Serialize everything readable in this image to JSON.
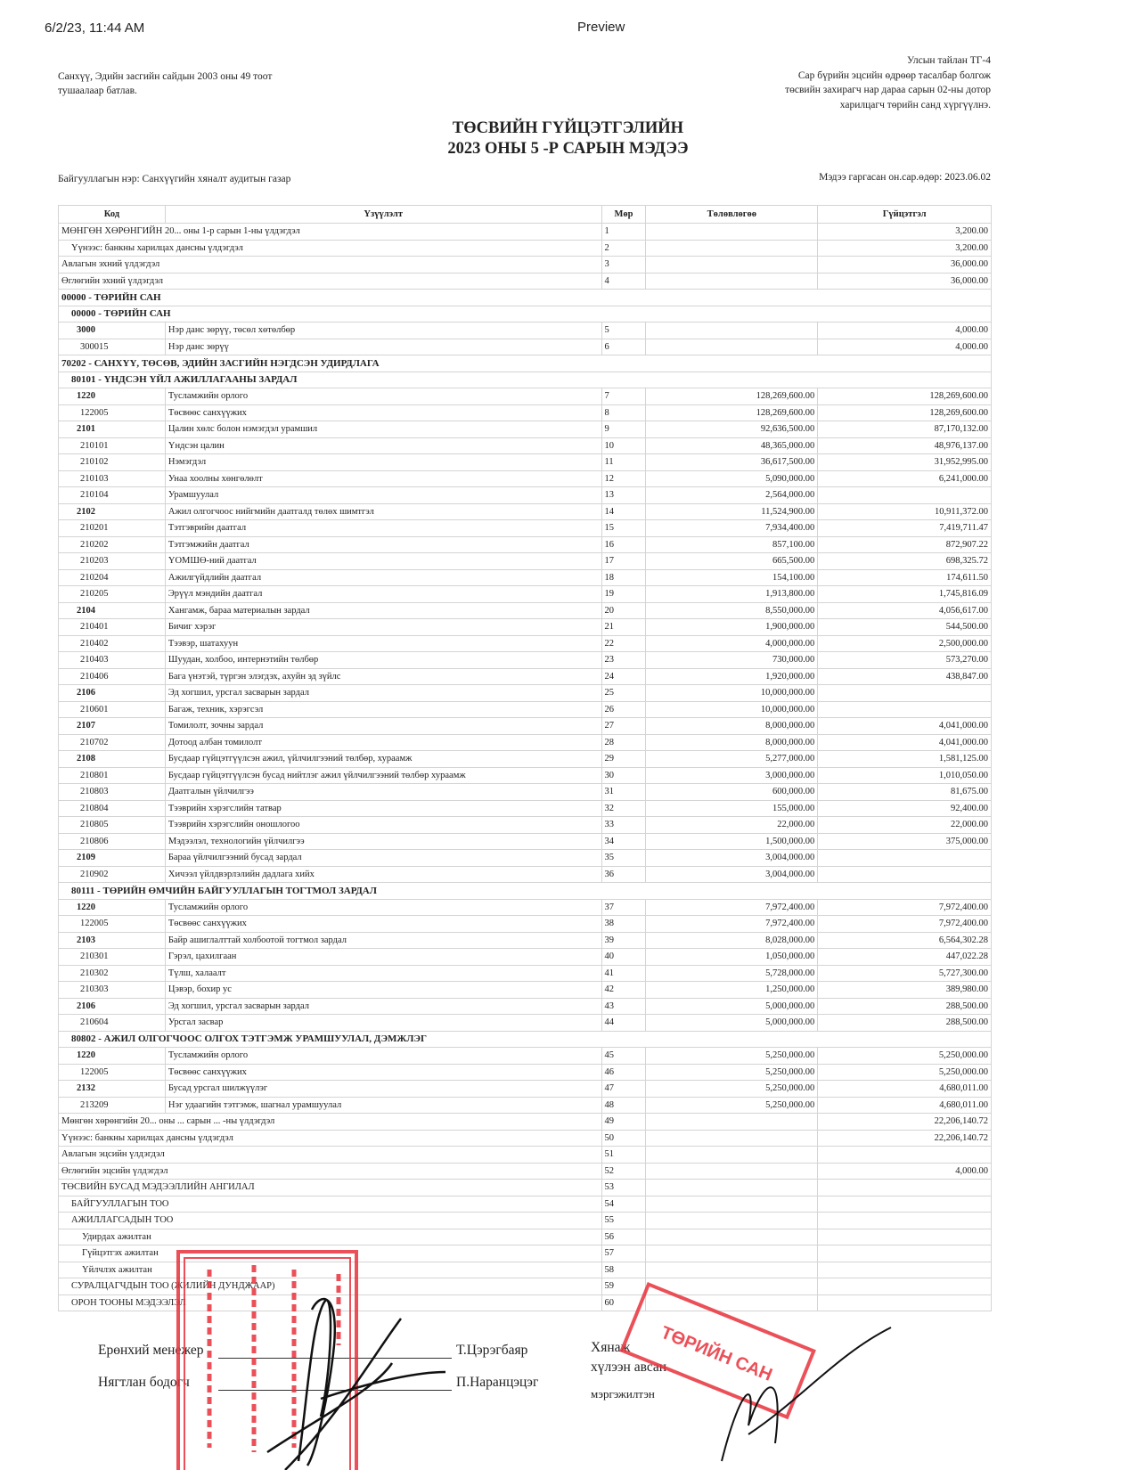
{
  "browser": {
    "timestamp": "6/2/23, 11:44 AM",
    "app_title": "Preview"
  },
  "header": {
    "left_note": [
      "Санхүү, Эдийн засгийн сайдын 2003 оны 49 тоот",
      "тушаалаар батлав."
    ],
    "right_note": [
      "Улсын тайлан ТГ-4",
      "Сар бүрийн эцсийн өдрөөр тасалбар болгож",
      "төсвийн захирагч нар дараа сарын 02-ны дотор",
      "харилцагч төрийн санд хүргүүлнэ."
    ],
    "title": [
      "ТӨСВИЙН ГҮЙЦЭТГЭЛИЙН",
      "2023 ОНЫ 5 -Р САРЫН МЭДЭЭ"
    ],
    "org": "Байгууллагын нэр: Санхүүгийн хяналт аудитын газар",
    "date": "Мэдээ гаргасан он.сар.өдөр: 2023.06.02"
  },
  "table": {
    "columns": [
      "Код",
      "Үзүүлэлт",
      "Мөр",
      "Төлөвлөгөө",
      "Гүйцэтгэл"
    ],
    "rows": [
      {
        "t": "sum",
        "i": 0,
        "name": "МӨНГӨН ХӨРӨНГИЙН 20... оны 1-р сарын 1-ны үлдэгдэл",
        "no": "1",
        "plan": "",
        "actual": "3,200.00"
      },
      {
        "t": "sum",
        "i": 1,
        "name": "Үүнээс: банкны харилцах дансны үлдэгдэл",
        "no": "2",
        "plan": "",
        "actual": "3,200.00"
      },
      {
        "t": "sum",
        "i": 0,
        "name": "Авлагын эхний үлдэгдэл",
        "no": "3",
        "plan": "",
        "actual": "36,000.00"
      },
      {
        "t": "sum",
        "i": 0,
        "name": "Өглөгийн эхний үлдэгдэл",
        "no": "4",
        "plan": "",
        "actual": "36,000.00"
      },
      {
        "t": "sec",
        "i": 0,
        "name": "00000 - ТӨРИЙН САН"
      },
      {
        "t": "sec",
        "i": 1,
        "name": "00000 - ТӨРИЙН САН"
      },
      {
        "t": "row",
        "b": true,
        "code": "3000",
        "name": "Нэр данс зөрүү, төсөл хөтөлбөр",
        "no": "5",
        "plan": "",
        "actual": "4,000.00"
      },
      {
        "t": "row",
        "code": "300015",
        "name": "Нэр данс зөрүү",
        "no": "6",
        "plan": "",
        "actual": "4,000.00"
      },
      {
        "t": "sec",
        "i": 0,
        "name": "70202 - САНХҮҮ, ТӨСӨВ, ЭДИЙН ЗАСГИЙН НЭГДСЭН УДИРДЛАГА"
      },
      {
        "t": "sec",
        "i": 1,
        "name": "80101 - ҮНДСЭН ҮЙЛ АЖИЛЛАГААНЫ ЗАРДАЛ"
      },
      {
        "t": "row",
        "b": true,
        "code": "1220",
        "name": "Тусламжийн орлого",
        "no": "7",
        "plan": "128,269,600.00",
        "actual": "128,269,600.00"
      },
      {
        "t": "row",
        "code": "122005",
        "name": "Төсвөөс санхүүжих",
        "no": "8",
        "plan": "128,269,600.00",
        "actual": "128,269,600.00"
      },
      {
        "t": "row",
        "b": true,
        "code": "2101",
        "name": "Цалин хөлс болон нэмэгдэл урамшил",
        "no": "9",
        "plan": "92,636,500.00",
        "actual": "87,170,132.00"
      },
      {
        "t": "row",
        "code": "210101",
        "name": "Үндсэн цалин",
        "no": "10",
        "plan": "48,365,000.00",
        "actual": "48,976,137.00"
      },
      {
        "t": "row",
        "code": "210102",
        "name": "Нэмэгдэл",
        "no": "11",
        "plan": "36,617,500.00",
        "actual": "31,952,995.00"
      },
      {
        "t": "row",
        "code": "210103",
        "name": "Унаа хоолны хөнгөлөлт",
        "no": "12",
        "plan": "5,090,000.00",
        "actual": "6,241,000.00"
      },
      {
        "t": "row",
        "code": "210104",
        "name": "Урамшуулал",
        "no": "13",
        "plan": "2,564,000.00",
        "actual": ""
      },
      {
        "t": "row",
        "b": true,
        "code": "2102",
        "name": "Ажил олгогчоос нийгмийн даатгалд төлөх шимтгэл",
        "no": "14",
        "plan": "11,524,900.00",
        "actual": "10,911,372.00"
      },
      {
        "t": "row",
        "code": "210201",
        "name": "Тэтгэврийн даатгал",
        "no": "15",
        "plan": "7,934,400.00",
        "actual": "7,419,711.47"
      },
      {
        "t": "row",
        "code": "210202",
        "name": "Тэтгэмжийн даатгал",
        "no": "16",
        "plan": "857,100.00",
        "actual": "872,907.22"
      },
      {
        "t": "row",
        "code": "210203",
        "name": "ҮОМШӨ-ний даатгал",
        "no": "17",
        "plan": "665,500.00",
        "actual": "698,325.72"
      },
      {
        "t": "row",
        "code": "210204",
        "name": "Ажилгүйдлийн даатгал",
        "no": "18",
        "plan": "154,100.00",
        "actual": "174,611.50"
      },
      {
        "t": "row",
        "code": "210205",
        "name": "Эрүүл мэндийн даатгал",
        "no": "19",
        "plan": "1,913,800.00",
        "actual": "1,745,816.09"
      },
      {
        "t": "row",
        "b": true,
        "code": "2104",
        "name": "Хангамж, бараа материалын зардал",
        "no": "20",
        "plan": "8,550,000.00",
        "actual": "4,056,617.00"
      },
      {
        "t": "row",
        "code": "210401",
        "name": "Бичиг хэрэг",
        "no": "21",
        "plan": "1,900,000.00",
        "actual": "544,500.00"
      },
      {
        "t": "row",
        "code": "210402",
        "name": "Тээвэр, шатахуун",
        "no": "22",
        "plan": "4,000,000.00",
        "actual": "2,500,000.00"
      },
      {
        "t": "row",
        "code": "210403",
        "name": "Шуудан, холбоо, интернэтийн төлбөр",
        "no": "23",
        "plan": "730,000.00",
        "actual": "573,270.00"
      },
      {
        "t": "row",
        "code": "210406",
        "name": "Бага үнэтэй, түргэн элэгдэх, ахуйн эд зүйлс",
        "no": "24",
        "plan": "1,920,000.00",
        "actual": "438,847.00"
      },
      {
        "t": "row",
        "b": true,
        "code": "2106",
        "name": "Эд хогшил, урсгал засварын зардал",
        "no": "25",
        "plan": "10,000,000.00",
        "actual": ""
      },
      {
        "t": "row",
        "code": "210601",
        "name": "Багаж, техник, хэрэгсэл",
        "no": "26",
        "plan": "10,000,000.00",
        "actual": ""
      },
      {
        "t": "row",
        "b": true,
        "code": "2107",
        "name": "Томилолт, зочны зардал",
        "no": "27",
        "plan": "8,000,000.00",
        "actual": "4,041,000.00"
      },
      {
        "t": "row",
        "code": "210702",
        "name": "Дотоод албан томилолт",
        "no": "28",
        "plan": "8,000,000.00",
        "actual": "4,041,000.00"
      },
      {
        "t": "row",
        "b": true,
        "code": "2108",
        "name": "Бусдаар гүйцэтгүүлсэн ажил, үйлчилгээний төлбөр, хураамж",
        "no": "29",
        "plan": "5,277,000.00",
        "actual": "1,581,125.00"
      },
      {
        "t": "row",
        "code": "210801",
        "name": "Бусдаар гүйцэтгүүлсэн бусад нийтлэг ажил үйлчилгээний төлбөр хураамж",
        "no": "30",
        "plan": "3,000,000.00",
        "actual": "1,010,050.00"
      },
      {
        "t": "row",
        "code": "210803",
        "name": "Даатгалын үйлчилгээ",
        "no": "31",
        "plan": "600,000.00",
        "actual": "81,675.00"
      },
      {
        "t": "row",
        "code": "210804",
        "name": "Тээврийн хэрэгслийн татвар",
        "no": "32",
        "plan": "155,000.00",
        "actual": "92,400.00"
      },
      {
        "t": "row",
        "code": "210805",
        "name": "Тээврийн хэрэгслийн оношлогоо",
        "no": "33",
        "plan": "22,000.00",
        "actual": "22,000.00"
      },
      {
        "t": "row",
        "code": "210806",
        "name": "Мэдээлэл, технологийн үйлчилгээ",
        "no": "34",
        "plan": "1,500,000.00",
        "actual": "375,000.00"
      },
      {
        "t": "row",
        "b": true,
        "code": "2109",
        "name": "Бараа үйлчилгээний бусад зардал",
        "no": "35",
        "plan": "3,004,000.00",
        "actual": ""
      },
      {
        "t": "row",
        "code": "210902",
        "name": "Хичээл үйлдвэрлэлийн дадлага хийх",
        "no": "36",
        "plan": "3,004,000.00",
        "actual": ""
      },
      {
        "t": "sec",
        "i": 1,
        "name": "80111 - ТӨРИЙН ӨМЧИЙН БАЙГУУЛЛАГЫН ТОГТМОЛ ЗАРДАЛ"
      },
      {
        "t": "row",
        "b": true,
        "code": "1220",
        "name": "Тусламжийн орлого",
        "no": "37",
        "plan": "7,972,400.00",
        "actual": "7,972,400.00"
      },
      {
        "t": "row",
        "code": "122005",
        "name": "Төсвөөс санхүүжих",
        "no": "38",
        "plan": "7,972,400.00",
        "actual": "7,972,400.00"
      },
      {
        "t": "row",
        "b": true,
        "code": "2103",
        "name": "Байр ашиглалттай холбоотой тогтмол зардал",
        "no": "39",
        "plan": "8,028,000.00",
        "actual": "6,564,302.28"
      },
      {
        "t": "row",
        "code": "210301",
        "name": "Гэрэл, цахилгаан",
        "no": "40",
        "plan": "1,050,000.00",
        "actual": "447,022.28"
      },
      {
        "t": "row",
        "code": "210302",
        "name": "Түлш, халаалт",
        "no": "41",
        "plan": "5,728,000.00",
        "actual": "5,727,300.00"
      },
      {
        "t": "row",
        "code": "210303",
        "name": "Цэвэр, бохир ус",
        "no": "42",
        "plan": "1,250,000.00",
        "actual": "389,980.00"
      },
      {
        "t": "row",
        "b": true,
        "code": "2106",
        "name": "Эд хогшил, урсгал засварын зардал",
        "no": "43",
        "plan": "5,000,000.00",
        "actual": "288,500.00"
      },
      {
        "t": "row",
        "code": "210604",
        "name": "Урсгал засвар",
        "no": "44",
        "plan": "5,000,000.00",
        "actual": "288,500.00"
      },
      {
        "t": "sec",
        "i": 1,
        "name": "80802 - АЖИЛ ОЛГОГЧООС ОЛГОХ ТЭТГЭМЖ УРАМШУУЛАЛ, ДЭМЖЛЭГ"
      },
      {
        "t": "row",
        "b": true,
        "code": "1220",
        "name": "Тусламжийн орлого",
        "no": "45",
        "plan": "5,250,000.00",
        "actual": "5,250,000.00"
      },
      {
        "t": "row",
        "code": "122005",
        "name": "Төсвөөс санхүүжих",
        "no": "46",
        "plan": "5,250,000.00",
        "actual": "5,250,000.00"
      },
      {
        "t": "row",
        "b": true,
        "code": "2132",
        "name": "Бусад урсгал шилжүүлэг",
        "no": "47",
        "plan": "5,250,000.00",
        "actual": "4,680,011.00"
      },
      {
        "t": "row",
        "code": "213209",
        "name": "Нэг удаагийн тэтгэмж, шагнал урамшуулал",
        "no": "48",
        "plan": "5,250,000.00",
        "actual": "4,680,011.00"
      },
      {
        "t": "sum",
        "i": 0,
        "name": "Мөнгөн хөрөнгийн 20... оны ... сарын ... -ны үлдэгдэл",
        "no": "49",
        "plan": "",
        "actual": "22,206,140.72"
      },
      {
        "t": "sum",
        "i": 0,
        "name": "Үүнээс: банкны харилцах дансны үлдэгдэл",
        "no": "50",
        "plan": "",
        "actual": "22,206,140.72"
      },
      {
        "t": "sum",
        "i": 0,
        "name": "Авлагын эцсийн үлдэгдэл",
        "no": "51",
        "plan": "",
        "actual": ""
      },
      {
        "t": "sum",
        "i": 0,
        "name": "Өглөгийн эцсийн үлдэгдэл",
        "no": "52",
        "plan": "",
        "actual": "4,000.00"
      },
      {
        "t": "sum",
        "i": 0,
        "name": "ТӨСВИЙН БУСАД МЭДЭЭЛЛИЙН АНГИЛАЛ",
        "no": "53",
        "plan": "",
        "actual": ""
      },
      {
        "t": "sum",
        "i": 1,
        "name": "БАЙГУУЛЛАГЫН ТОО",
        "no": "54",
        "plan": "",
        "actual": ""
      },
      {
        "t": "sum",
        "i": 1,
        "name": "АЖИЛЛАГСАДЫН ТОО",
        "no": "55",
        "plan": "",
        "actual": ""
      },
      {
        "t": "sum",
        "i": 2,
        "name": "Удирдах ажилтан",
        "no": "56",
        "plan": "",
        "actual": ""
      },
      {
        "t": "sum",
        "i": 2,
        "name": "Гүйцэтгэх ажилтан",
        "no": "57",
        "plan": "",
        "actual": ""
      },
      {
        "t": "sum",
        "i": 2,
        "name": "Үйлчлэх ажилтан",
        "no": "58",
        "plan": "",
        "actual": ""
      },
      {
        "t": "sum",
        "i": 1,
        "name": "СУРАЛЦАГЧДЫН ТОО (ЖИЛИЙН ДУНДЖААР)",
        "no": "59",
        "plan": "",
        "actual": ""
      },
      {
        "t": "sum",
        "i": 1,
        "name": "ОРОН ТООНЫ МЭДЭЭЛЭЛ",
        "no": "60",
        "plan": "",
        "actual": ""
      }
    ]
  },
  "signatures": {
    "manager_title": "Ерөнхий менежер",
    "manager_name": "Т.Цэрэгбаяр",
    "accountant_title": "Нягтлан бодогч",
    "accountant_name": "П.Наранцэцэг",
    "reviewer": [
      "Хянаж",
      "хүлээн авсан",
      "мэргэжилтэн"
    ],
    "stamp_text": "ТӨРИЙН САН МЭРГЭЖИЛТЭН"
  },
  "colors": {
    "stamp": "#e8323c",
    "ink": "#111111"
  }
}
